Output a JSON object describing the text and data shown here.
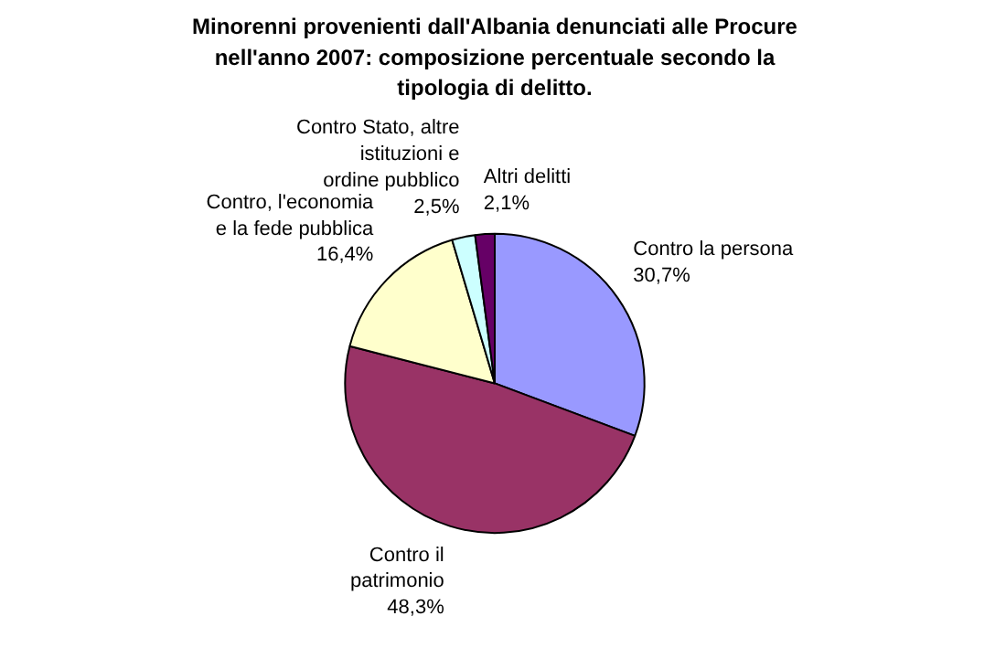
{
  "chart_data": {
    "type": "pie",
    "title": "Minorenni provenienti dall'Albania denunciati alle Procure nell'anno 2007: composizione percentuale secondo la tipologia di delitto.",
    "categories": [
      "Contro la persona",
      "Contro il patrimonio",
      "Contro, l'economia e la fede pubblica",
      "Contro Stato, altre istituzioni e ordine pubblico",
      "Altri delitti"
    ],
    "values": [
      30.7,
      48.3,
      16.4,
      2.5,
      2.1
    ],
    "value_labels": [
      "30,7%",
      "48,3%",
      "16,4%",
      "2,5%",
      "2,1%"
    ],
    "colors": [
      "#9999ff",
      "#993366",
      "#ffffcc",
      "#ccffff",
      "#660066"
    ]
  }
}
